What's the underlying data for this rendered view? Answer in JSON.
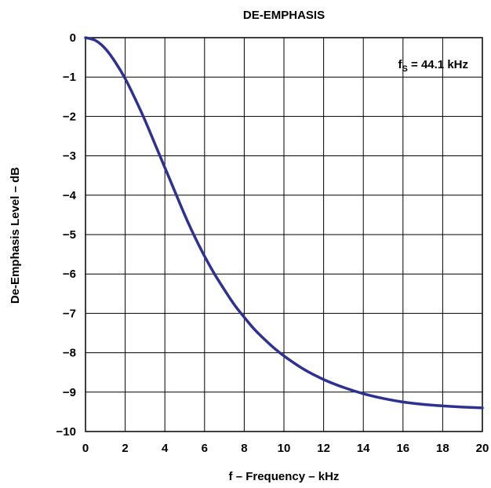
{
  "chart_data": {
    "type": "line",
    "title": "DE-EMPHASIS",
    "xlabel": "f – Frequency – kHz",
    "ylabel": "De-Emphasis Level – dB",
    "annotation": {
      "prefix": "f",
      "subscript": "S",
      "suffix": " = 44.1 kHz",
      "placement": "top-right"
    },
    "xlim": [
      0,
      20
    ],
    "ylim": [
      -10,
      0
    ],
    "x_ticks": [
      "0",
      "2",
      "4",
      "6",
      "8",
      "10",
      "12",
      "14",
      "16",
      "18",
      "20"
    ],
    "y_ticks": [
      "0",
      "−1",
      "−2",
      "−3",
      "−4",
      "−5",
      "−6",
      "−7",
      "−8",
      "−9",
      "−10"
    ],
    "grid": true,
    "line_color": "#2e3192",
    "series": [
      {
        "x": [
          0,
          0.5,
          1,
          1.5,
          2,
          2.5,
          3,
          3.5,
          4,
          4.5,
          5,
          5.5,
          6,
          6.5,
          7,
          7.5,
          8,
          8.5,
          9,
          9.5,
          10,
          11,
          12,
          13,
          14,
          15,
          16,
          17,
          18,
          19,
          20
        ],
        "y": [
          0,
          -0.07,
          -0.28,
          -0.62,
          -1.04,
          -1.55,
          -2.1,
          -2.7,
          -3.3,
          -3.9,
          -4.5,
          -5.05,
          -5.55,
          -6.0,
          -6.4,
          -6.78,
          -7.1,
          -7.4,
          -7.65,
          -7.88,
          -8.08,
          -8.42,
          -8.68,
          -8.88,
          -9.04,
          -9.16,
          -9.25,
          -9.31,
          -9.35,
          -9.38,
          -9.4
        ]
      }
    ]
  }
}
